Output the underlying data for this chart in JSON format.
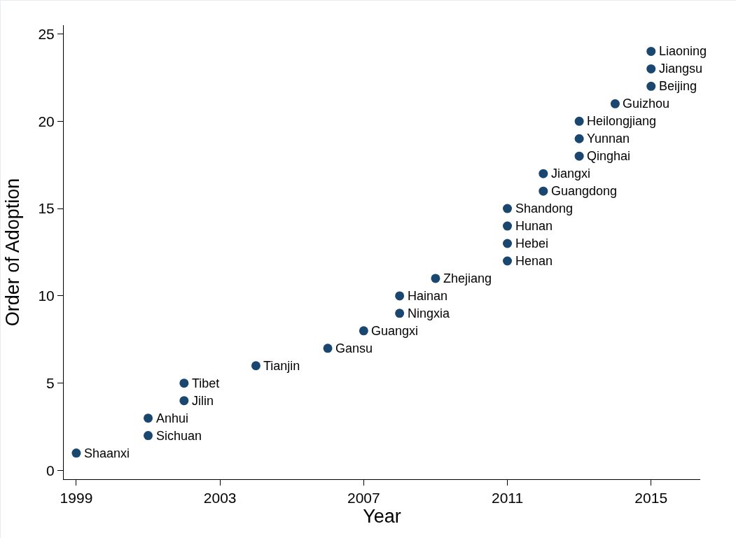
{
  "chart_data": {
    "type": "scatter",
    "xlabel": "Year",
    "ylabel": "Order of Adoption",
    "x": [
      1999,
      2001,
      2001,
      2002,
      2002,
      2004,
      2006,
      2007,
      2008,
      2008,
      2009,
      2011,
      2011,
      2011,
      2011,
      2012,
      2012,
      2013,
      2013,
      2013,
      2014,
      2015,
      2015,
      2015
    ],
    "values": [
      1,
      2,
      3,
      4,
      5,
      6,
      7,
      8,
      9,
      10,
      11,
      12,
      13,
      14,
      15,
      16,
      17,
      18,
      19,
      20,
      21,
      22,
      23,
      24
    ],
    "color": "#1a476f",
    "marker": "circle",
    "grid": false,
    "xlim": [
      1998.65,
      2016.37
    ],
    "xticks": [
      1999,
      2003,
      2007,
      2011,
      2015
    ],
    "ylim": [
      -0.5,
      25.5
    ],
    "yticks": [
      0,
      5,
      10,
      15,
      20,
      25
    ],
    "annotations": [
      {
        "text": "Shaanxi",
        "x": 1999,
        "y": 1
      },
      {
        "text": "Sichuan",
        "x": 2001,
        "y": 2
      },
      {
        "text": "Anhui",
        "x": 2001,
        "y": 3
      },
      {
        "text": "Jilin",
        "x": 2002,
        "y": 4
      },
      {
        "text": "Tibet",
        "x": 2002,
        "y": 5
      },
      {
        "text": "Tianjin",
        "x": 2004,
        "y": 6
      },
      {
        "text": "Gansu",
        "x": 2006,
        "y": 7
      },
      {
        "text": "Guangxi",
        "x": 2007,
        "y": 8
      },
      {
        "text": "Ningxia",
        "x": 2008,
        "y": 9
      },
      {
        "text": "Hainan",
        "x": 2008,
        "y": 10
      },
      {
        "text": "Zhejiang",
        "x": 2009,
        "y": 11
      },
      {
        "text": "Henan",
        "x": 2011,
        "y": 12
      },
      {
        "text": "Hebei",
        "x": 2011,
        "y": 13
      },
      {
        "text": "Hunan",
        "x": 2011,
        "y": 14
      },
      {
        "text": "Shandong",
        "x": 2011,
        "y": 15
      },
      {
        "text": "Guangdong",
        "x": 2012,
        "y": 16
      },
      {
        "text": "Jiangxi",
        "x": 2012,
        "y": 17
      },
      {
        "text": "Qinghai",
        "x": 2013,
        "y": 18
      },
      {
        "text": "Yunnan",
        "x": 2013,
        "y": 19
      },
      {
        "text": "Heilongjiang",
        "x": 2013,
        "y": 20
      },
      {
        "text": "Guizhou",
        "x": 2014,
        "y": 21
      },
      {
        "text": "Beijing",
        "x": 2015,
        "y": 22
      },
      {
        "text": "Jiangsu",
        "x": 2015,
        "y": 23
      },
      {
        "text": "Liaoning",
        "x": 2015,
        "y": 24
      }
    ]
  }
}
